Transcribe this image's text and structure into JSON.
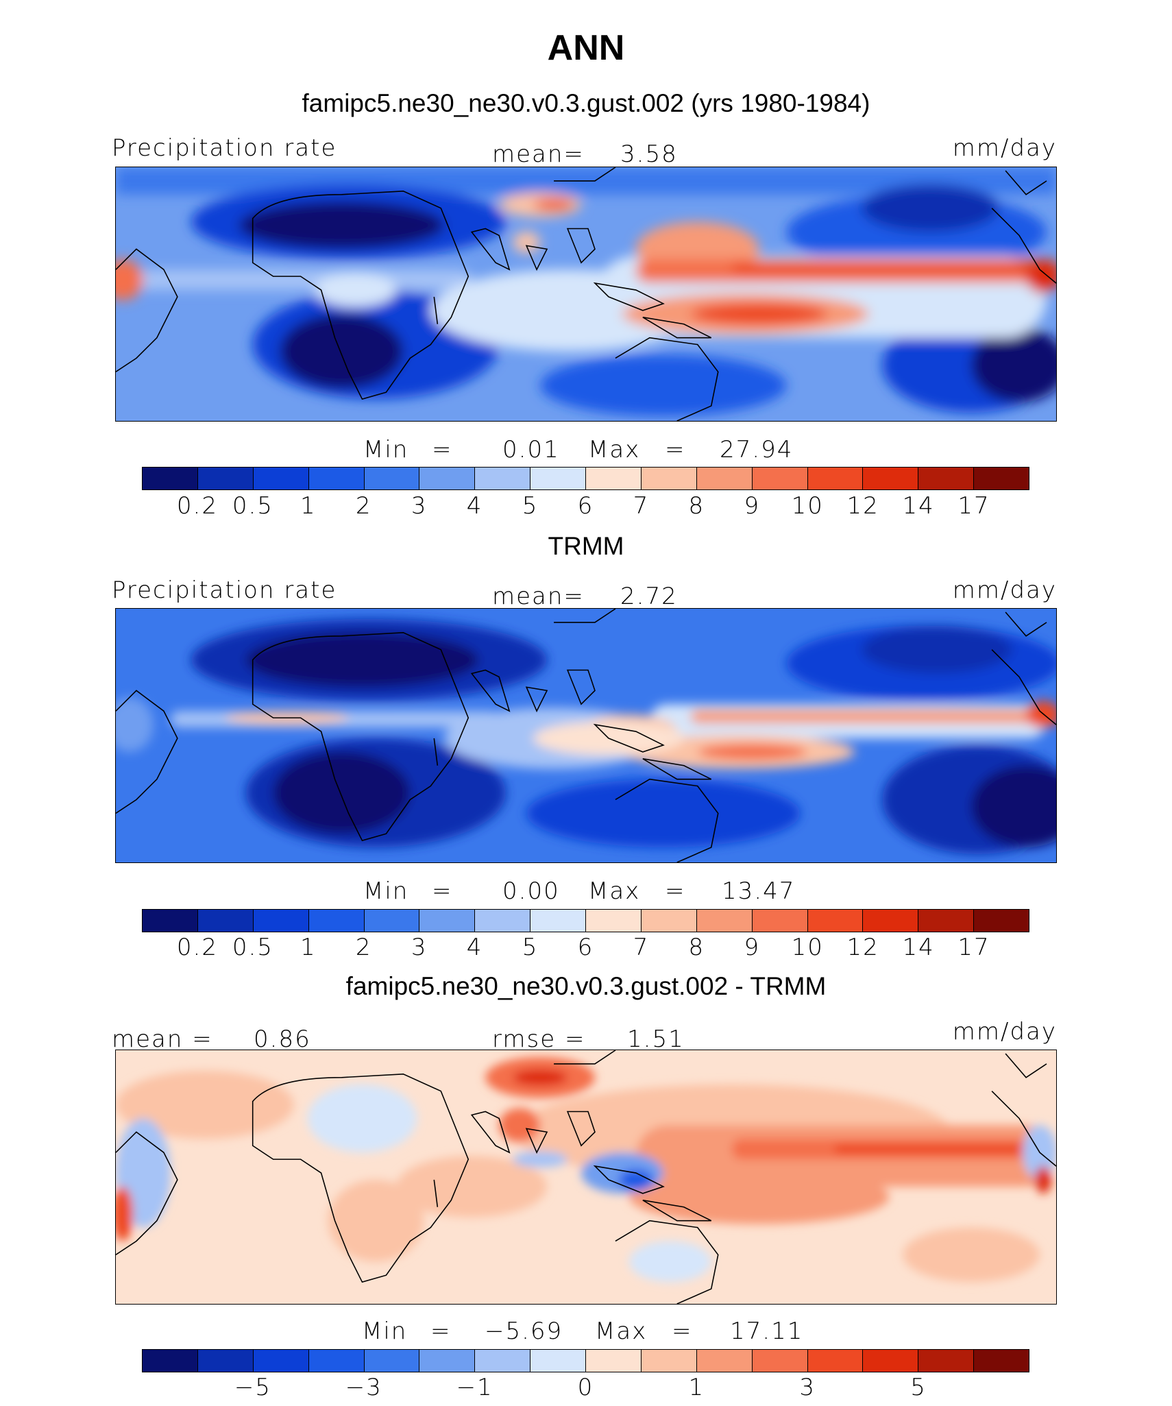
{
  "figure": {
    "title": "ANN"
  },
  "colors": {
    "precip_scale": [
      "#08106e",
      "#0a2eb0",
      "#0c3fd6",
      "#1c5ae6",
      "#3a78ec",
      "#6f9ef0",
      "#a6c3f6",
      "#d6e6fb",
      "#fde2d1",
      "#fbc3a6",
      "#f79a77",
      "#f4704c",
      "#ee4a24",
      "#de2c0c",
      "#b11c08",
      "#7a0a04"
    ],
    "diff_scale": [
      "#08106e",
      "#0a2eb0",
      "#0c3fd6",
      "#1c5ae6",
      "#3a78ec",
      "#6f9ef0",
      "#a6c3f6",
      "#d6e6fb",
      "#fde2d1",
      "#fbc3a6",
      "#f79a77",
      "#f4704c",
      "#ee4a24",
      "#de2c0c",
      "#b11c08",
      "#7a0a04"
    ],
    "coastline": "#000000"
  },
  "panels": [
    {
      "id": "model",
      "title": "famipc5.ne30_ne30.v0.3.gust.002 (yrs 1980-1984)",
      "left_label": "Precipitation rate",
      "center_label": "mean=",
      "center_value": "3.58",
      "units": "mm/day",
      "min_label": "Min",
      "min_value": "0.01",
      "max_label": "Max",
      "max_value": "27.94",
      "levels": [
        "0.2",
        "0.5",
        "1",
        "2",
        "3",
        "4",
        "5",
        "6",
        "7",
        "8",
        "9",
        "10",
        "12",
        "14",
        "17"
      ]
    },
    {
      "id": "obs",
      "title": "TRMM",
      "left_label": "Precipitation rate",
      "center_label": "mean=",
      "center_value": "2.72",
      "units": "mm/day",
      "min_label": "Min",
      "min_value": "0.00",
      "max_label": "Max",
      "max_value": "13.47",
      "levels": [
        "0.2",
        "0.5",
        "1",
        "2",
        "3",
        "4",
        "5",
        "6",
        "7",
        "8",
        "9",
        "10",
        "12",
        "14",
        "17"
      ]
    },
    {
      "id": "diff",
      "title": "famipc5.ne30_ne30.v0.3.gust.002 - TRMM",
      "left_label": "mean =",
      "left_value": "0.86",
      "center_label": "rmse =",
      "center_value": "1.51",
      "units": "mm/day",
      "min_label": "Min",
      "min_value": "−5.69",
      "max_label": "Max",
      "max_value": "17.11",
      "levels": [
        "−5",
        "−3",
        "−1",
        "0",
        "1",
        "3",
        "5"
      ]
    }
  ]
}
